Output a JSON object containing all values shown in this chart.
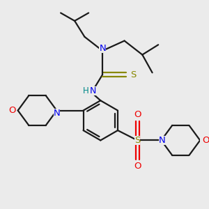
{
  "bg_color": "#ebebeb",
  "bond_color": "#1a1a1a",
  "N_color": "#0000ee",
  "O_color": "#ee0000",
  "S_color": "#888800",
  "H_color": "#008888",
  "line_width": 1.6,
  "fig_size": [
    3.0,
    3.0
  ],
  "dpi": 100,
  "xlim": [
    0,
    10
  ],
  "ylim": [
    0,
    10
  ]
}
